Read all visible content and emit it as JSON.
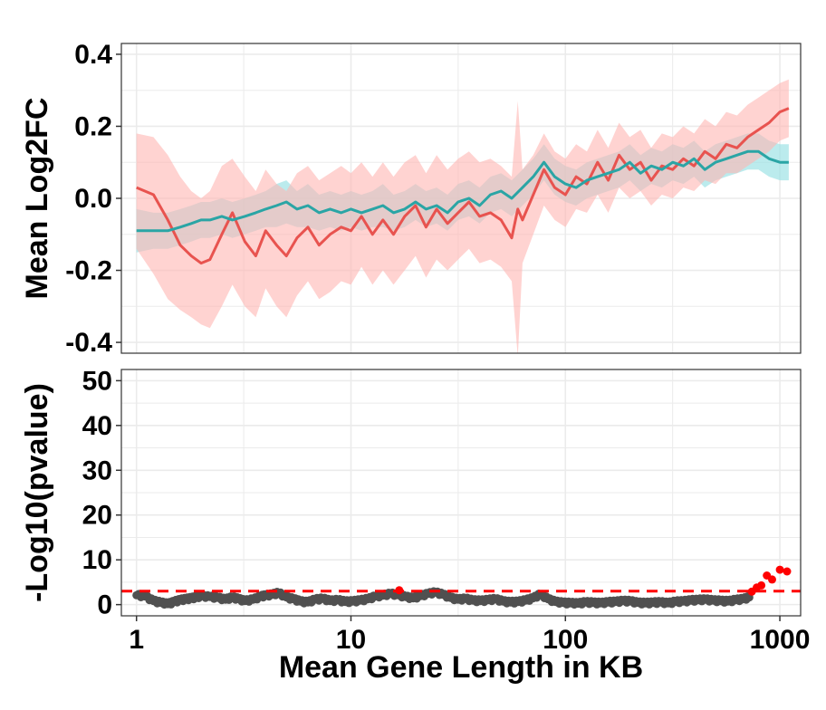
{
  "colors": {
    "red_line": "#e8534f",
    "red_band": "#ffb6b3",
    "teal_line": "#2aa5a5",
    "teal_band": "#9ee3e6",
    "points_ns": "#505050",
    "points_sig": "#ff0000",
    "threshold": "#ff0000",
    "grid": "#ebebeb",
    "panel_border": "#333333"
  },
  "chart_data": [
    {
      "type": "line",
      "panel": "top",
      "ylabel": "Mean Log2FC",
      "xscale": "log10",
      "xlim": [
        0.85,
        1250
      ],
      "ylim": [
        -0.43,
        0.43
      ],
      "yticks": [
        -0.4,
        -0.2,
        0.0,
        0.2,
        0.4
      ],
      "ytick_labels": [
        "-0.4",
        "-0.2",
        "0.0",
        "0.2",
        "0.4"
      ],
      "grid": true,
      "legend": "none",
      "series": [
        {
          "color_key": "red",
          "x": [
            1.0,
            1.2,
            1.4,
            1.6,
            1.8,
            2.0,
            2.2,
            2.5,
            2.8,
            3.2,
            3.6,
            4.0,
            4.5,
            5.0,
            5.6,
            6.3,
            7.1,
            8.0,
            9.0,
            10.0,
            11.2,
            12.6,
            14.1,
            15.8,
            17.8,
            20.0,
            22.4,
            25.1,
            28.2,
            31.6,
            35.5,
            39.8,
            44.7,
            50.1,
            56.2,
            60.0,
            63.1,
            70.8,
            79.4,
            89.1,
            100.0,
            112.2,
            125.9,
            141.3,
            158.5,
            177.8,
            199.5,
            223.9,
            251.2,
            281.8,
            316.2,
            354.8,
            398.1,
            446.7,
            501.2,
            562.3,
            631.0,
            707.9,
            794.3,
            891.3,
            1000.0,
            1100.0
          ],
          "y": [
            0.03,
            0.01,
            -0.06,
            -0.13,
            -0.16,
            -0.18,
            -0.17,
            -0.1,
            -0.04,
            -0.12,
            -0.16,
            -0.09,
            -0.13,
            -0.16,
            -0.11,
            -0.08,
            -0.13,
            -0.1,
            -0.08,
            -0.09,
            -0.05,
            -0.1,
            -0.06,
            -0.1,
            -0.05,
            -0.02,
            -0.08,
            -0.03,
            -0.07,
            -0.04,
            -0.01,
            -0.05,
            -0.04,
            -0.06,
            -0.11,
            -0.03,
            -0.06,
            0.01,
            0.08,
            0.03,
            0.01,
            0.06,
            0.04,
            0.1,
            0.05,
            0.12,
            0.08,
            0.1,
            0.05,
            0.09,
            0.08,
            0.11,
            0.09,
            0.13,
            0.11,
            0.15,
            0.14,
            0.17,
            0.19,
            0.21,
            0.24,
            0.25
          ],
          "ci_lower": [
            -0.14,
            -0.21,
            -0.28,
            -0.31,
            -0.33,
            -0.35,
            -0.36,
            -0.3,
            -0.24,
            -0.3,
            -0.33,
            -0.25,
            -0.3,
            -0.33,
            -0.27,
            -0.23,
            -0.28,
            -0.26,
            -0.23,
            -0.24,
            -0.19,
            -0.24,
            -0.2,
            -0.24,
            -0.2,
            -0.16,
            -0.22,
            -0.17,
            -0.2,
            -0.17,
            -0.14,
            -0.18,
            -0.17,
            -0.19,
            -0.23,
            -0.44,
            -0.18,
            -0.1,
            -0.02,
            -0.06,
            -0.08,
            -0.03,
            -0.04,
            0.01,
            -0.04,
            0.03,
            0.0,
            0.02,
            -0.02,
            0.01,
            0.0,
            0.03,
            0.02,
            0.05,
            0.04,
            0.07,
            0.07,
            0.09,
            0.11,
            0.13,
            0.16,
            0.17
          ],
          "ci_upper": [
            0.18,
            0.17,
            0.12,
            0.06,
            0.02,
            0.0,
            0.02,
            0.09,
            0.11,
            0.06,
            0.02,
            0.08,
            0.04,
            0.02,
            0.07,
            0.09,
            0.05,
            0.07,
            0.09,
            0.07,
            0.1,
            0.06,
            0.1,
            0.06,
            0.1,
            0.12,
            0.07,
            0.12,
            0.08,
            0.11,
            0.13,
            0.1,
            0.11,
            0.09,
            0.06,
            0.27,
            0.08,
            0.12,
            0.18,
            0.13,
            0.11,
            0.15,
            0.13,
            0.19,
            0.14,
            0.21,
            0.17,
            0.19,
            0.14,
            0.18,
            0.17,
            0.2,
            0.18,
            0.22,
            0.2,
            0.24,
            0.23,
            0.26,
            0.28,
            0.3,
            0.32,
            0.33
          ]
        },
        {
          "color_key": "teal",
          "x": [
            1.0,
            1.2,
            1.4,
            1.6,
            1.8,
            2.0,
            2.2,
            2.5,
            2.8,
            3.2,
            3.6,
            4.0,
            4.5,
            5.0,
            5.6,
            6.3,
            7.1,
            8.0,
            9.0,
            10.0,
            11.2,
            12.6,
            14.1,
            15.8,
            17.8,
            20.0,
            22.4,
            25.1,
            28.2,
            31.6,
            35.5,
            39.8,
            44.7,
            50.1,
            56.2,
            63.1,
            70.8,
            79.4,
            89.1,
            100.0,
            112.2,
            125.9,
            141.3,
            158.5,
            177.8,
            199.5,
            223.9,
            251.2,
            281.8,
            316.2,
            354.8,
            398.1,
            446.7,
            501.2,
            562.3,
            631.0,
            707.9,
            794.3,
            891.3,
            1000.0,
            1100.0
          ],
          "y": [
            -0.09,
            -0.09,
            -0.09,
            -0.08,
            -0.07,
            -0.06,
            -0.06,
            -0.05,
            -0.06,
            -0.05,
            -0.04,
            -0.03,
            -0.02,
            -0.01,
            -0.03,
            -0.02,
            -0.04,
            -0.03,
            -0.04,
            -0.03,
            -0.04,
            -0.03,
            -0.02,
            -0.04,
            -0.03,
            -0.01,
            -0.03,
            -0.02,
            -0.04,
            -0.01,
            0.0,
            -0.02,
            0.01,
            0.02,
            0.0,
            0.03,
            0.06,
            0.1,
            0.06,
            0.04,
            0.03,
            0.05,
            0.06,
            0.07,
            0.08,
            0.1,
            0.07,
            0.09,
            0.08,
            0.1,
            0.09,
            0.11,
            0.08,
            0.1,
            0.11,
            0.12,
            0.13,
            0.13,
            0.11,
            0.1,
            0.1
          ],
          "ci_lower": [
            -0.15,
            -0.14,
            -0.14,
            -0.13,
            -0.12,
            -0.11,
            -0.11,
            -0.1,
            -0.11,
            -0.1,
            -0.09,
            -0.08,
            -0.08,
            -0.07,
            -0.08,
            -0.08,
            -0.09,
            -0.08,
            -0.09,
            -0.08,
            -0.09,
            -0.08,
            -0.08,
            -0.09,
            -0.08,
            -0.06,
            -0.08,
            -0.07,
            -0.09,
            -0.06,
            -0.05,
            -0.07,
            -0.04,
            -0.03,
            -0.05,
            -0.02,
            0.01,
            0.05,
            0.01,
            -0.01,
            -0.02,
            0.0,
            0.01,
            0.02,
            0.03,
            0.05,
            0.02,
            0.04,
            0.03,
            0.05,
            0.04,
            0.06,
            0.03,
            0.05,
            0.06,
            0.07,
            0.08,
            0.08,
            0.06,
            0.05,
            0.05
          ],
          "ci_upper": [
            -0.03,
            -0.04,
            -0.04,
            -0.03,
            -0.02,
            -0.01,
            -0.01,
            0.0,
            -0.01,
            0.0,
            0.01,
            0.02,
            0.04,
            0.05,
            0.02,
            0.04,
            0.01,
            0.02,
            0.01,
            0.02,
            0.01,
            0.02,
            0.04,
            0.01,
            0.02,
            0.04,
            0.02,
            0.03,
            0.01,
            0.04,
            0.05,
            0.03,
            0.06,
            0.07,
            0.05,
            0.08,
            0.11,
            0.15,
            0.11,
            0.09,
            0.08,
            0.1,
            0.11,
            0.12,
            0.13,
            0.15,
            0.12,
            0.14,
            0.13,
            0.15,
            0.14,
            0.16,
            0.13,
            0.15,
            0.16,
            0.17,
            0.18,
            0.18,
            0.16,
            0.15,
            0.15
          ]
        }
      ]
    },
    {
      "type": "scatter",
      "panel": "bottom",
      "xlabel": "Mean Gene Length in KB",
      "ylabel": "-Log10(pvalue)",
      "xscale": "log10",
      "xlim": [
        0.85,
        1250
      ],
      "ylim": [
        -2.5,
        52.5
      ],
      "yticks": [
        0,
        10,
        20,
        30,
        40,
        50
      ],
      "ytick_labels": [
        "0",
        "10",
        "20",
        "30",
        "40",
        "50"
      ],
      "xticks": [
        1,
        10,
        100,
        1000
      ],
      "xtick_labels": [
        "1",
        "10",
        "100",
        "1000"
      ],
      "grid": true,
      "threshold": 3,
      "series": [
        {
          "color_key": "ns",
          "x": [
            1.0,
            1.1,
            1.2,
            1.3,
            1.4,
            1.5,
            1.6,
            1.7,
            1.8,
            1.9,
            2.0,
            2.2,
            2.4,
            2.6,
            2.8,
            3.0,
            3.2,
            3.5,
            3.8,
            4.0,
            4.3,
            4.6,
            5.0,
            5.4,
            5.8,
            6.3,
            6.8,
            7.4,
            8.0,
            8.7,
            9.4,
            10.2,
            11.0,
            12.0,
            13.0,
            14.1,
            15.3,
            16.6,
            18.0,
            19.5,
            21.1,
            22.9,
            24.8,
            26.9,
            29.1,
            31.6,
            34.2,
            37.1,
            40.2,
            43.6,
            47.2,
            51.2,
            55.5,
            60.2,
            65.2,
            70.7,
            76.6,
            83.0,
            90.0,
            97.5,
            105.7,
            114.6,
            124.2,
            134.6,
            145.9,
            158.1,
            171.4,
            185.8,
            201.4,
            218.2,
            236.5,
            256.4,
            277.9,
            301.2,
            326.5,
            353.9,
            383.6,
            415.8,
            450.6,
            488.4,
            529.4,
            573.8,
            622.0,
            674.1,
            720.0
          ],
          "y": [
            2.1,
            1.8,
            0.8,
            0.4,
            0.1,
            0.6,
            1.0,
            1.2,
            1.4,
            1.6,
            1.9,
            1.7,
            1.5,
            1.1,
            1.6,
            1.2,
            0.8,
            1.1,
            1.8,
            2.0,
            2.2,
            2.6,
            1.6,
            1.2,
            0.7,
            0.5,
            1.1,
            1.3,
            0.8,
            1.0,
            0.6,
            0.7,
            0.9,
            1.2,
            1.8,
            2.0,
            2.4,
            2.1,
            1.7,
            1.4,
            1.9,
            2.4,
            2.7,
            2.2,
            1.5,
            1.1,
            1.3,
            0.9,
            0.8,
            1.0,
            1.2,
            0.7,
            0.5,
            0.6,
            0.9,
            1.4,
            2.3,
            1.2,
            0.6,
            0.4,
            0.3,
            0.2,
            0.5,
            0.4,
            0.3,
            0.5,
            0.6,
            0.8,
            0.7,
            0.4,
            0.3,
            0.4,
            0.5,
            0.3,
            0.6,
            0.7,
            0.9,
            1.0,
            1.1,
            0.9,
            0.8,
            0.7,
            1.0,
            1.2,
            1.6
          ]
        },
        {
          "color_key": "sig",
          "x": [
            16.8,
            740.0,
            780.0,
            820.0,
            870.0,
            920.0,
            1000.0,
            1080.0
          ],
          "y": [
            3.2,
            2.9,
            3.8,
            4.3,
            6.5,
            5.6,
            7.8,
            7.4
          ]
        }
      ]
    }
  ]
}
